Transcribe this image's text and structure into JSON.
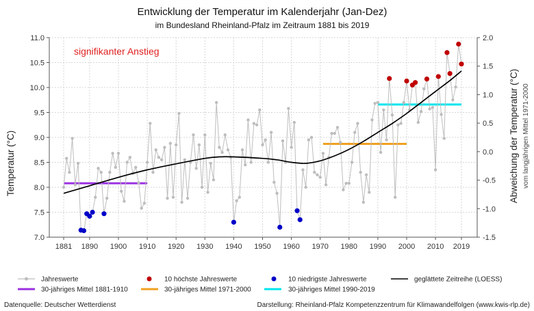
{
  "title": "Entwicklung der Temperatur im Kalenderjahr (Jan-Dez)",
  "subtitle": "im Bundesland Rheinland-Pfalz im Zeitraum 1881 bis 2019",
  "annotation": "signifikanter Anstieg",
  "footer_left": "Datenquelle: Deutscher Wetterdienst",
  "footer_right": "Darstellung: Rheinland-Pfalz Kompetenzzentrum für Klimawandelfolgen (www.kwis-rlp.de)",
  "colors": {
    "annual": "#bdbdbd",
    "hot": "#c00000",
    "cold": "#0000c8",
    "loess": "#000000",
    "mean_1881_1910": "#9b30e0",
    "mean_1971_2000": "#f0a020",
    "mean_1990_2019": "#00e5ee",
    "annotation": "#e02020"
  },
  "legend": {
    "annual": "Jahreswerte",
    "hot": "10 höchste Jahreswerte",
    "cold": "10 niedrigste Jahreswerte",
    "loess": "geglättete Zeitreihe (LOESS)",
    "mean_1881_1910": "30-jähriges Mittel 1881-1910",
    "mean_1971_2000": "30-jähriges Mittel 1971-2000",
    "mean_1990_2019": "30-jähriges Mittel 1990-2019"
  },
  "chart_data": {
    "type": "line",
    "ylabel": "Temperatur (°C)",
    "y2label": "Abweichung der Temperatur (°C)",
    "y2label_sub": "vom langjährigen Mittel 1971-2000",
    "xlim": [
      1881,
      2019
    ],
    "ylim": [
      7.0,
      11.0
    ],
    "y2lim": [
      -1.5,
      2.0
    ],
    "xticks": [
      1881,
      1890,
      1900,
      1910,
      1920,
      1930,
      1940,
      1950,
      1960,
      1970,
      1980,
      1990,
      2000,
      2010,
      2019
    ],
    "yticks": [
      "7.0",
      "7.5",
      "8.0",
      "8.5",
      "9.0",
      "9.5",
      "10.0",
      "10.5",
      "11.0"
    ],
    "y2ticks": [
      "-1.5",
      "-1.0",
      "-0.5",
      "0.0",
      "0.5",
      "1.0",
      "1.5",
      "2.0"
    ],
    "grid": true,
    "legend_position": "bottom",
    "annual_values": [
      {
        "year": 1881,
        "value": 8.0
      },
      {
        "year": 1882,
        "value": 8.58
      },
      {
        "year": 1883,
        "value": 8.3
      },
      {
        "year": 1884,
        "value": 8.98
      },
      {
        "year": 1885,
        "value": 8.05
      },
      {
        "year": 1886,
        "value": 8.48
      },
      {
        "year": 1887,
        "value": 7.14
      },
      {
        "year": 1888,
        "value": 7.13
      },
      {
        "year": 1889,
        "value": 7.47
      },
      {
        "year": 1890,
        "value": 7.42
      },
      {
        "year": 1891,
        "value": 7.5
      },
      {
        "year": 1892,
        "value": 7.8
      },
      {
        "year": 1893,
        "value": 8.38
      },
      {
        "year": 1894,
        "value": 8.3
      },
      {
        "year": 1895,
        "value": 7.47
      },
      {
        "year": 1896,
        "value": 7.78
      },
      {
        "year": 1897,
        "value": 8.3
      },
      {
        "year": 1898,
        "value": 8.68
      },
      {
        "year": 1899,
        "value": 8.4
      },
      {
        "year": 1900,
        "value": 8.68
      },
      {
        "year": 1901,
        "value": 7.92
      },
      {
        "year": 1902,
        "value": 7.72
      },
      {
        "year": 1903,
        "value": 8.5
      },
      {
        "year": 1904,
        "value": 8.6
      },
      {
        "year": 1905,
        "value": 8.28
      },
      {
        "year": 1906,
        "value": 8.4
      },
      {
        "year": 1907,
        "value": 8.09
      },
      {
        "year": 1908,
        "value": 7.58
      },
      {
        "year": 1909,
        "value": 7.68
      },
      {
        "year": 1910,
        "value": 8.5
      },
      {
        "year": 1911,
        "value": 9.28
      },
      {
        "year": 1912,
        "value": 8.3
      },
      {
        "year": 1913,
        "value": 8.75
      },
      {
        "year": 1914,
        "value": 8.6
      },
      {
        "year": 1915,
        "value": 8.55
      },
      {
        "year": 1916,
        "value": 8.8
      },
      {
        "year": 1917,
        "value": 7.78
      },
      {
        "year": 1918,
        "value": 8.88
      },
      {
        "year": 1919,
        "value": 7.8
      },
      {
        "year": 1920,
        "value": 8.85
      },
      {
        "year": 1921,
        "value": 9.48
      },
      {
        "year": 1922,
        "value": 7.7
      },
      {
        "year": 1923,
        "value": 8.55
      },
      {
        "year": 1924,
        "value": 7.78
      },
      {
        "year": 1925,
        "value": 8.5
      },
      {
        "year": 1926,
        "value": 9.05
      },
      {
        "year": 1927,
        "value": 8.38
      },
      {
        "year": 1928,
        "value": 8.85
      },
      {
        "year": 1929,
        "value": 8.0
      },
      {
        "year": 1930,
        "value": 9.05
      },
      {
        "year": 1931,
        "value": 7.9
      },
      {
        "year": 1932,
        "value": 8.48
      },
      {
        "year": 1933,
        "value": 8.15
      },
      {
        "year": 1934,
        "value": 9.7
      },
      {
        "year": 1935,
        "value": 8.8
      },
      {
        "year": 1936,
        "value": 8.7
      },
      {
        "year": 1937,
        "value": 9.05
      },
      {
        "year": 1938,
        "value": 8.75
      },
      {
        "year": 1939,
        "value": 8.6
      },
      {
        "year": 1940,
        "value": 7.3
      },
      {
        "year": 1941,
        "value": 7.73
      },
      {
        "year": 1942,
        "value": 7.8
      },
      {
        "year": 1943,
        "value": 8.75
      },
      {
        "year": 1944,
        "value": 8.45
      },
      {
        "year": 1945,
        "value": 9.35
      },
      {
        "year": 1946,
        "value": 8.5
      },
      {
        "year": 1947,
        "value": 9.28
      },
      {
        "year": 1948,
        "value": 9.25
      },
      {
        "year": 1949,
        "value": 9.55
      },
      {
        "year": 1950,
        "value": 8.85
      },
      {
        "year": 1951,
        "value": 8.95
      },
      {
        "year": 1952,
        "value": 8.5
      },
      {
        "year": 1953,
        "value": 9.1
      },
      {
        "year": 1954,
        "value": 8.1
      },
      {
        "year": 1955,
        "value": 7.88
      },
      {
        "year": 1956,
        "value": 7.2
      },
      {
        "year": 1957,
        "value": 8.93
      },
      {
        "year": 1958,
        "value": 8.5
      },
      {
        "year": 1959,
        "value": 9.58
      },
      {
        "year": 1960,
        "value": 8.8
      },
      {
        "year": 1961,
        "value": 9.3
      },
      {
        "year": 1962,
        "value": 7.53
      },
      {
        "year": 1963,
        "value": 7.35
      },
      {
        "year": 1964,
        "value": 8.35
      },
      {
        "year": 1965,
        "value": 8.0
      },
      {
        "year": 1966,
        "value": 8.95
      },
      {
        "year": 1967,
        "value": 9.0
      },
      {
        "year": 1968,
        "value": 8.3
      },
      {
        "year": 1969,
        "value": 8.25
      },
      {
        "year": 1970,
        "value": 8.2
      },
      {
        "year": 1971,
        "value": 8.68
      },
      {
        "year": 1972,
        "value": 8.05
      },
      {
        "year": 1973,
        "value": 8.6
      },
      {
        "year": 1974,
        "value": 9.08
      },
      {
        "year": 1975,
        "value": 9.08
      },
      {
        "year": 1976,
        "value": 9.2
      },
      {
        "year": 1977,
        "value": 8.9
      },
      {
        "year": 1978,
        "value": 7.95
      },
      {
        "year": 1979,
        "value": 8.08
      },
      {
        "year": 1980,
        "value": 8.08
      },
      {
        "year": 1981,
        "value": 8.5
      },
      {
        "year": 1982,
        "value": 9.1
      },
      {
        "year": 1983,
        "value": 9.28
      },
      {
        "year": 1984,
        "value": 8.3
      },
      {
        "year": 1985,
        "value": 7.7
      },
      {
        "year": 1986,
        "value": 8.25
      },
      {
        "year": 1987,
        "value": 7.9
      },
      {
        "year": 1988,
        "value": 9.35
      },
      {
        "year": 1989,
        "value": 9.68
      },
      {
        "year": 1990,
        "value": 9.7
      },
      {
        "year": 1991,
        "value": 8.7
      },
      {
        "year": 1992,
        "value": 9.55
      },
      {
        "year": 1993,
        "value": 8.95
      },
      {
        "year": 1994,
        "value": 10.18
      },
      {
        "year": 1995,
        "value": 9.45
      },
      {
        "year": 1996,
        "value": 7.8
      },
      {
        "year": 1997,
        "value": 9.25
      },
      {
        "year": 1998,
        "value": 9.28
      },
      {
        "year": 1999,
        "value": 9.7
      },
      {
        "year": 2000,
        "value": 10.13
      },
      {
        "year": 2001,
        "value": 9.55
      },
      {
        "year": 2002,
        "value": 10.05
      },
      {
        "year": 2003,
        "value": 10.1
      },
      {
        "year": 2004,
        "value": 9.3
      },
      {
        "year": 2005,
        "value": 9.52
      },
      {
        "year": 2006,
        "value": 9.97
      },
      {
        "year": 2007,
        "value": 10.17
      },
      {
        "year": 2008,
        "value": 9.57
      },
      {
        "year": 2009,
        "value": 9.6
      },
      {
        "year": 2010,
        "value": 8.35
      },
      {
        "year": 2011,
        "value": 10.22
      },
      {
        "year": 2012,
        "value": 9.46
      },
      {
        "year": 2013,
        "value": 8.98
      },
      {
        "year": 2014,
        "value": 10.7
      },
      {
        "year": 2015,
        "value": 10.28
      },
      {
        "year": 2016,
        "value": 9.75
      },
      {
        "year": 2017,
        "value": 10.01
      },
      {
        "year": 2018,
        "value": 10.87
      },
      {
        "year": 2019,
        "value": 10.47
      }
    ],
    "highest_10": [
      1994,
      2000,
      2002,
      2003,
      2007,
      2011,
      2014,
      2015,
      2018,
      2019
    ],
    "lowest_10": [
      1887,
      1888,
      1889,
      1890,
      1891,
      1895,
      1940,
      1956,
      1962,
      1963
    ],
    "loess": [
      {
        "year": 1881,
        "value": 7.88
      },
      {
        "year": 1890,
        "value": 8.03
      },
      {
        "year": 1900,
        "value": 8.2
      },
      {
        "year": 1910,
        "value": 8.35
      },
      {
        "year": 1920,
        "value": 8.47
      },
      {
        "year": 1930,
        "value": 8.58
      },
      {
        "year": 1935,
        "value": 8.61
      },
      {
        "year": 1940,
        "value": 8.61
      },
      {
        "year": 1950,
        "value": 8.58
      },
      {
        "year": 1955,
        "value": 8.55
      },
      {
        "year": 1960,
        "value": 8.5
      },
      {
        "year": 1965,
        "value": 8.48
      },
      {
        "year": 1970,
        "value": 8.53
      },
      {
        "year": 1975,
        "value": 8.63
      },
      {
        "year": 1980,
        "value": 8.76
      },
      {
        "year": 1985,
        "value": 8.92
      },
      {
        "year": 1990,
        "value": 9.1
      },
      {
        "year": 1995,
        "value": 9.28
      },
      {
        "year": 2000,
        "value": 9.48
      },
      {
        "year": 2005,
        "value": 9.7
      },
      {
        "year": 2010,
        "value": 9.92
      },
      {
        "year": 2015,
        "value": 10.14
      },
      {
        "year": 2019,
        "value": 10.33
      }
    ],
    "means": [
      {
        "label_key": "mean_1881_1910",
        "from": 1881,
        "to": 1910,
        "value": 8.08
      },
      {
        "label_key": "mean_1971_2000",
        "from": 1971,
        "to": 2000,
        "value": 8.87
      },
      {
        "label_key": "mean_1990_2019",
        "from": 1990,
        "to": 2019,
        "value": 9.66
      }
    ]
  }
}
